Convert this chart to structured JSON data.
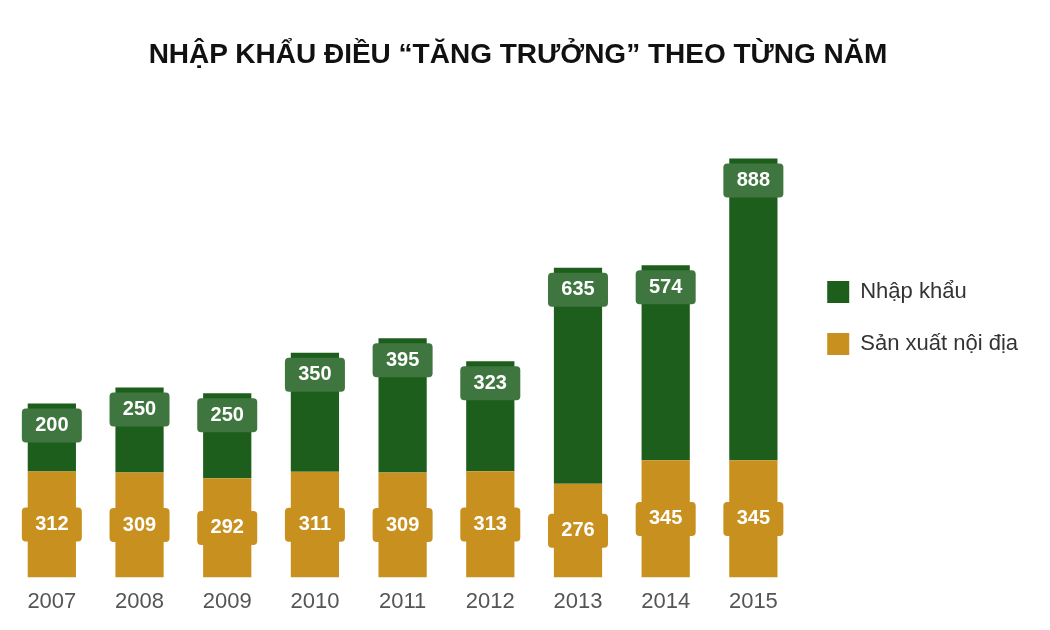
{
  "chart_data": {
    "type": "bar",
    "title": "NHẬP KHẨU ĐIỀU “TĂNG TRƯỞNG” THEO TỪNG NĂM",
    "categories": [
      "2007",
      "2008",
      "2009",
      "2010",
      "2011",
      "2012",
      "2013",
      "2014",
      "2015"
    ],
    "stacked": true,
    "data_labels": true,
    "legend": "right",
    "grid": false,
    "series": [
      {
        "name": "Sản xuất nội địa",
        "color": "#c8901e",
        "values": [
          312,
          309,
          292,
          311,
          309,
          313,
          276,
          345,
          345
        ]
      },
      {
        "name": "Nhập khẩu",
        "color": "#1d5e1d",
        "values": [
          200,
          250,
          250,
          350,
          395,
          323,
          635,
          574,
          888
        ]
      }
    ]
  }
}
